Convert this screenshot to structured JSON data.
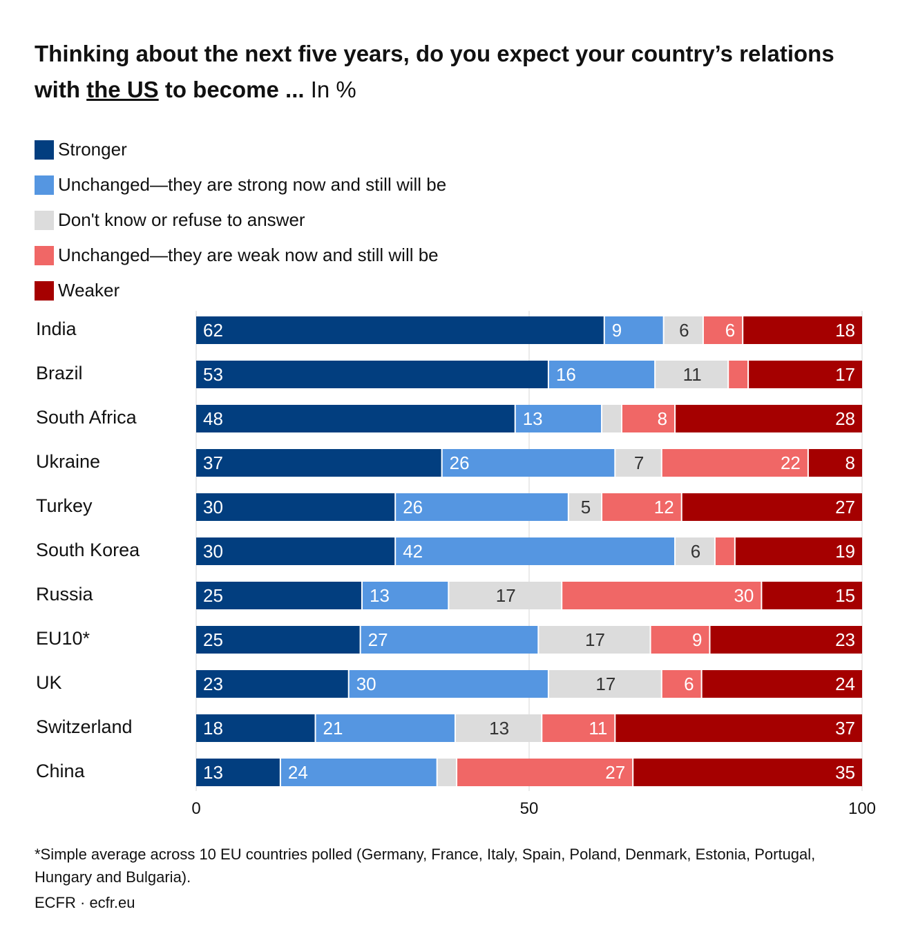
{
  "chart_data": {
    "type": "bar",
    "orientation": "horizontal",
    "stacked": true,
    "title_parts": [
      "Thinking about the next five years, do you expect your country’s relations with ",
      "the US",
      " to become ..."
    ],
    "unit": "In %",
    "categories": [
      "India",
      "Brazil",
      "South Africa",
      "Ukraine",
      "Turkey",
      "South Korea",
      "Russia",
      "EU10*",
      "UK",
      "Switzerland",
      "China"
    ],
    "series": [
      {
        "name": "Stronger",
        "color": "#023e7f",
        "values": [
          62,
          53,
          48,
          37,
          30,
          30,
          25,
          25,
          23,
          18,
          13
        ]
      },
      {
        "name": "Unchanged—they are strong now and still will be",
        "color": "#5596e1",
        "values": [
          9,
          16,
          13,
          26,
          26,
          42,
          13,
          27,
          30,
          21,
          24
        ]
      },
      {
        "name": "Don't know or refuse to answer",
        "color": "#dcdcdc",
        "values": [
          6,
          11,
          3,
          7,
          5,
          6,
          17,
          17,
          17,
          13,
          3
        ]
      },
      {
        "name": "Unchanged—they are weak now and still will be",
        "color": "#f06766",
        "values": [
          6,
          3,
          8,
          22,
          12,
          3,
          30,
          9,
          6,
          11,
          27
        ]
      },
      {
        "name": "Weaker",
        "color": "#a50000",
        "values": [
          18,
          17,
          28,
          8,
          27,
          19,
          15,
          23,
          24,
          37,
          35
        ]
      }
    ],
    "hidden_labels": [
      [],
      [
        [
          1,
          3
        ]
      ],
      [
        [
          2,
          2
        ]
      ],
      [],
      [],
      [
        [
          5,
          3
        ]
      ],
      [],
      [],
      [],
      [],
      [
        [
          10,
          2
        ]
      ]
    ],
    "xlim": [
      0,
      100
    ],
    "xticks": [
      "0",
      "50",
      "100"
    ],
    "grid": true,
    "legend_position": "top-left"
  },
  "footnote": "*Simple average across 10 EU countries polled (Germany, France, Italy, Spain, Poland, Denmark, Estonia, Portugal, Hungary and Bulgaria).",
  "source": "ECFR · ecfr.eu"
}
